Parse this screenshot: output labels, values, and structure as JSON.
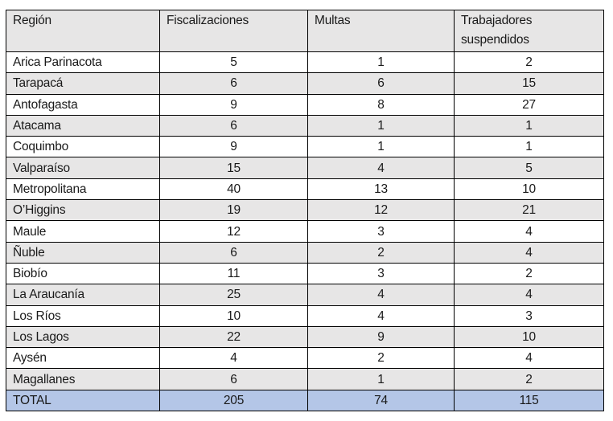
{
  "table": {
    "headers": [
      "Región",
      "Fiscalizaciones",
      "Multas",
      "Trabajadores suspendidos"
    ],
    "rows": [
      [
        "Arica Parinacota",
        "5",
        "1",
        "2"
      ],
      [
        "Tarapacá",
        "6",
        "6",
        "15"
      ],
      [
        "Antofagasta",
        "9",
        "8",
        "27"
      ],
      [
        "Atacama",
        "6",
        "1",
        "1"
      ],
      [
        "Coquimbo",
        "9",
        "1",
        "1"
      ],
      [
        "Valparaíso",
        "15",
        "4",
        "5"
      ],
      [
        "Metropolitana",
        "40",
        "13",
        "10"
      ],
      [
        "O’Higgins",
        "19",
        "12",
        "21"
      ],
      [
        "Maule",
        "12",
        "3",
        "4"
      ],
      [
        "Ñuble",
        "6",
        "2",
        "4"
      ],
      [
        "Biobío",
        "11",
        "3",
        "2"
      ],
      [
        "La Araucanía",
        "25",
        "4",
        "4"
      ],
      [
        "Los Ríos",
        "10",
        "4",
        "3"
      ],
      [
        "Los Lagos",
        "22",
        "9",
        "10"
      ],
      [
        "Aysén",
        "4",
        "2",
        "4"
      ],
      [
        "Magallanes",
        "6",
        "1",
        "2"
      ]
    ],
    "total": [
      "TOTAL",
      "205",
      "74",
      "115"
    ]
  },
  "colors": {
    "stripe": "#e7e6e6",
    "total": "#b4c6e7",
    "border": "#000000"
  }
}
